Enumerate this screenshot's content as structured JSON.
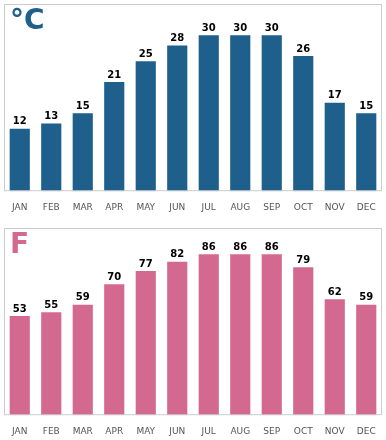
{
  "chart_data": [
    {
      "type": "bar",
      "categories": [
        "JAN",
        "FEB",
        "MAR",
        "APR",
        "MAY",
        "JUN",
        "JUL",
        "AUG",
        "SEP",
        "OCT",
        "NOV",
        "DEC"
      ],
      "values": [
        12,
        13,
        15,
        21,
        25,
        28,
        30,
        30,
        30,
        26,
        17,
        15
      ],
      "color": "#1F5F8B",
      "ylim": [
        0,
        36
      ],
      "grid": false,
      "data_labels": true,
      "tick_labels": "x",
      "annotations": [
        "°C"
      ]
    },
    {
      "type": "bar",
      "categories": [
        "JAN",
        "FEB",
        "MAR",
        "APR",
        "MAY",
        "JUN",
        "JUL",
        "AUG",
        "SEP",
        "OCT",
        "NOV",
        "DEC"
      ],
      "values": [
        53,
        55,
        59,
        70,
        77,
        82,
        86,
        86,
        86,
        79,
        62,
        59
      ],
      "color": "#D4698F",
      "ylim": [
        0,
        100
      ],
      "grid": false,
      "data_labels": true,
      "tick_labels": "x",
      "annotations": [
        "F"
      ]
    }
  ]
}
